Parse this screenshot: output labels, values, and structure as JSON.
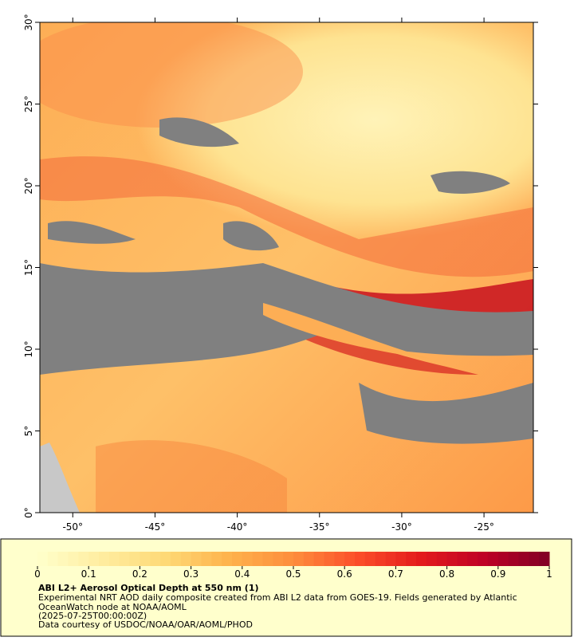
{
  "map": {
    "xlim": [
      -52,
      -22
    ],
    "ylim": [
      0,
      30
    ],
    "lat_ticks": [
      {
        "value": 0,
        "label": "0°"
      },
      {
        "value": 5,
        "label": "5°"
      },
      {
        "value": 10,
        "label": "10°"
      },
      {
        "value": 15,
        "label": "15°"
      },
      {
        "value": 20,
        "label": "20°"
      },
      {
        "value": 25,
        "label": "25°"
      },
      {
        "value": 30,
        "label": "30°"
      }
    ],
    "lon_ticks": [
      {
        "value": -50,
        "label": "-50°"
      },
      {
        "value": -45,
        "label": "-45°"
      },
      {
        "value": -40,
        "label": "-40°"
      },
      {
        "value": -35,
        "label": "-35°"
      },
      {
        "value": -30,
        "label": "-30°"
      },
      {
        "value": -25,
        "label": "-25°"
      }
    ]
  },
  "colorbar": {
    "clim": [
      0,
      1
    ],
    "ticks": [
      0,
      {
        "value": 0.1,
        "label": "0.1"
      },
      {
        "value": 0.2,
        "label": "0.2"
      },
      {
        "value": 0.3,
        "label": "0.3"
      },
      {
        "value": 0.4,
        "label": "0.4"
      },
      {
        "value": 0.5,
        "label": "0.5"
      },
      {
        "value": 0.6,
        "label": "0.6"
      },
      {
        "value": 0.7,
        "label": "0.7"
      },
      {
        "value": 0.8,
        "label": "0.8"
      },
      {
        "value": 0.9,
        "label": "0.9"
      },
      1
    ],
    "colormap": [
      "#ffffcc",
      "#ffeda0",
      "#fed976",
      "#feb24c",
      "#fd8d3c",
      "#fc4e2a",
      "#e31a1c",
      "#bd0026",
      "#800026"
    ]
  },
  "info": {
    "title": "ABI L2+ Aerosol Optical Depth at 550 nm (1)",
    "description": "Experimental NRT AOD daily composite created from ABI L2 data from GOES-19. Fields generated by Atlantic OceanWatch node at NOAA/AOML",
    "time": "(2025-07-25T00:00:00Z)",
    "credit": "Data courtesy of USDOC/NOAA/OAR/AOML/PHOD"
  }
}
